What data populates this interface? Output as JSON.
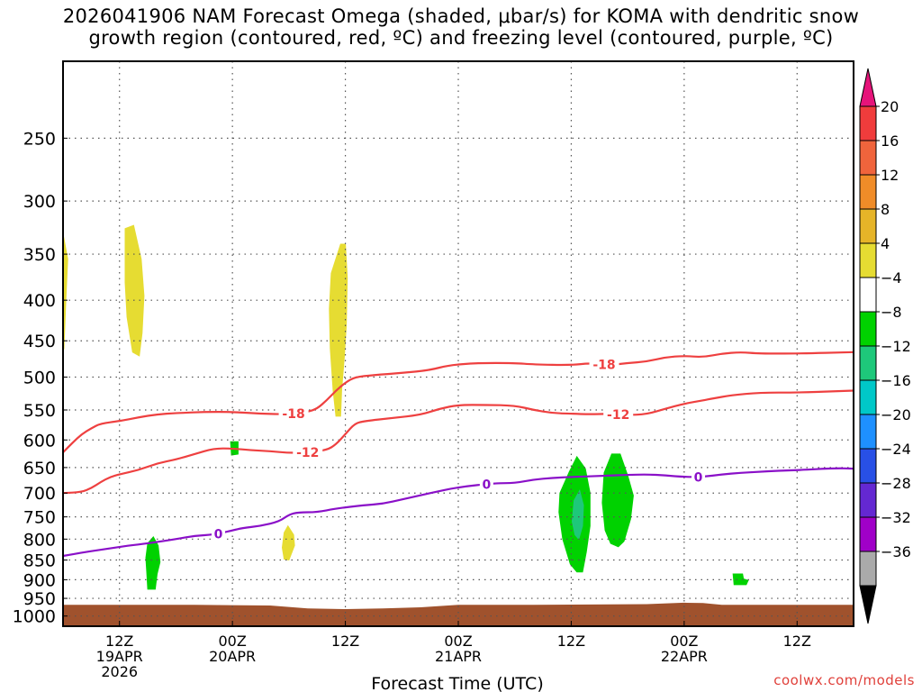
{
  "chart_data": {
    "type": "time-height-section",
    "title": "2026041906 NAM Forecast Omega (shaded, μbar/s) for KOMA with dendritic snow growth region (contoured, red, ºC) and freezing level (contoured, purple, ºC)",
    "title_line1": "2026041906 NAM Forecast Omega (shaded, μbar/s) for KOMA with dendritic snow",
    "title_line2": "growth region (contoured, red, ºC) and freezing level (contoured, purple, ºC)",
    "xlabel": "Forecast Time (UTC)",
    "ylabel": "",
    "x_range_hours": [
      6,
      90
    ],
    "y_range_hpa": [
      200,
      1030
    ],
    "y_ticks": [
      250,
      300,
      350,
      400,
      450,
      500,
      550,
      600,
      650,
      700,
      750,
      800,
      850,
      900,
      950,
      1000
    ],
    "x_ticks": [
      {
        "hour": 12,
        "line1": "12Z",
        "line2": "19APR",
        "line3": "2026"
      },
      {
        "hour": 24,
        "line1": "00Z",
        "line2": "20APR",
        "line3": ""
      },
      {
        "hour": 36,
        "line1": "12Z",
        "line2": "",
        "line3": ""
      },
      {
        "hour": 48,
        "line1": "00Z",
        "line2": "21APR",
        "line3": ""
      },
      {
        "hour": 60,
        "line1": "12Z",
        "line2": "",
        "line3": ""
      },
      {
        "hour": 72,
        "line1": "00Z",
        "line2": "22APR",
        "line3": ""
      },
      {
        "hour": 84,
        "line1": "12Z",
        "line2": "",
        "line3": ""
      }
    ],
    "colorbar": {
      "labels": [
        "20",
        "16",
        "12",
        "8",
        "4",
        "−4",
        "−8",
        "−12",
        "−16",
        "−20",
        "−24",
        "−28",
        "−32",
        "−36"
      ],
      "colors": [
        "#f03c3c",
        "#f0643c",
        "#f08c28",
        "#e6b428",
        "#e6dc32",
        "#ffffff",
        "#00d200",
        "#1ec87a",
        "#00c8c8",
        "#1e90ff",
        "#2850e6",
        "#6428d2",
        "#a000c8",
        "#aaaaaa"
      ],
      "top_arrow_color": "#e6147a",
      "bottom_arrow_color": "#000000"
    },
    "contours": [
      {
        "name": "dgz-minus18",
        "label": "-18",
        "color": "#ee4040",
        "points": [
          [
            6,
            622
          ],
          [
            7,
            605
          ],
          [
            8,
            590
          ],
          [
            9,
            580
          ],
          [
            10,
            572
          ],
          [
            12,
            568
          ],
          [
            14,
            562
          ],
          [
            16,
            557
          ],
          [
            18,
            555
          ],
          [
            21,
            553
          ],
          [
            24,
            553
          ],
          [
            27,
            556
          ],
          [
            30,
            557
          ],
          [
            32,
            553
          ],
          [
            33,
            548
          ],
          [
            34,
            535
          ],
          [
            35,
            520
          ],
          [
            36,
            508
          ],
          [
            37,
            500
          ],
          [
            39,
            497
          ],
          [
            42,
            494
          ],
          [
            45,
            490
          ],
          [
            47,
            483
          ],
          [
            50,
            480
          ],
          [
            54,
            480
          ],
          [
            56,
            482
          ],
          [
            60,
            483
          ],
          [
            62,
            480
          ],
          [
            64,
            483
          ],
          [
            66,
            480
          ],
          [
            68,
            478
          ],
          [
            70,
            472
          ],
          [
            72,
            470
          ],
          [
            74,
            472
          ],
          [
            76,
            467
          ],
          [
            78,
            465
          ],
          [
            80,
            467
          ],
          [
            84,
            467
          ],
          [
            90,
            465
          ]
        ],
        "label_hours": [
          30.5,
          63.5
        ]
      },
      {
        "name": "dgz-minus12",
        "label": "-12",
        "color": "#ee4040",
        "points": [
          [
            6,
            700
          ],
          [
            8,
            698
          ],
          [
            9,
            690
          ],
          [
            10,
            678
          ],
          [
            11,
            668
          ],
          [
            12,
            663
          ],
          [
            14,
            655
          ],
          [
            16,
            642
          ],
          [
            18,
            635
          ],
          [
            20,
            625
          ],
          [
            22,
            615
          ],
          [
            24,
            615
          ],
          [
            26,
            618
          ],
          [
            28,
            620
          ],
          [
            30,
            623
          ],
          [
            32,
            622
          ],
          [
            34,
            618
          ],
          [
            35,
            608
          ],
          [
            36,
            590
          ],
          [
            37,
            572
          ],
          [
            38,
            568
          ],
          [
            41,
            563
          ],
          [
            44,
            558
          ],
          [
            46,
            548
          ],
          [
            48,
            542
          ],
          [
            51,
            542
          ],
          [
            54,
            543
          ],
          [
            56,
            550
          ],
          [
            58,
            555
          ],
          [
            60,
            556
          ],
          [
            62,
            557
          ],
          [
            64,
            556
          ],
          [
            66,
            558
          ],
          [
            68,
            557
          ],
          [
            70,
            548
          ],
          [
            72,
            540
          ],
          [
            74,
            535
          ],
          [
            75,
            532
          ],
          [
            77,
            527
          ],
          [
            80,
            523
          ],
          [
            84,
            523
          ],
          [
            88,
            521
          ],
          [
            90,
            520
          ]
        ],
        "label_hours": [
          32,
          65
        ]
      },
      {
        "name": "freezing-level-0",
        "label": "0",
        "color": "#8a10c8",
        "points": [
          [
            6,
            840
          ],
          [
            8,
            832
          ],
          [
            10,
            825
          ],
          [
            13,
            815
          ],
          [
            15,
            810
          ],
          [
            18,
            800
          ],
          [
            20,
            792
          ],
          [
            22,
            790
          ],
          [
            24,
            780
          ],
          [
            25,
            775
          ],
          [
            27,
            770
          ],
          [
            29,
            760
          ],
          [
            30,
            745
          ],
          [
            31,
            740
          ],
          [
            33,
            740
          ],
          [
            35,
            732
          ],
          [
            38,
            725
          ],
          [
            40,
            722
          ],
          [
            42,
            713
          ],
          [
            45,
            700
          ],
          [
            48,
            688
          ],
          [
            52,
            680
          ],
          [
            54,
            680
          ],
          [
            56,
            673
          ],
          [
            58,
            670
          ],
          [
            60,
            668
          ],
          [
            63,
            666
          ],
          [
            66,
            664
          ],
          [
            68,
            663
          ],
          [
            70,
            665
          ],
          [
            72,
            668
          ],
          [
            74,
            668
          ],
          [
            76,
            663
          ],
          [
            78,
            660
          ],
          [
            80,
            658
          ],
          [
            82,
            656
          ],
          [
            84,
            655
          ],
          [
            88,
            651
          ],
          [
            90,
            652
          ]
        ],
        "label_hours": [
          22.5,
          51,
          73.5
        ]
      }
    ],
    "omega_regions": [
      {
        "name": "omega-plus4-a",
        "value": 4,
        "color": "#e6dc32",
        "points": [
          [
            6,
            330
          ],
          [
            6.5,
            355
          ],
          [
            6.3,
            400
          ],
          [
            6.1,
            460
          ],
          [
            6,
            465
          ]
        ]
      },
      {
        "name": "omega-plus4-b",
        "value": 4,
        "color": "#e6dc32",
        "points": [
          [
            12.6,
            325
          ],
          [
            13.5,
            322
          ],
          [
            14.3,
            355
          ],
          [
            14.6,
            395
          ],
          [
            14.4,
            440
          ],
          [
            14.1,
            470
          ],
          [
            13.4,
            465
          ],
          [
            12.8,
            420
          ],
          [
            12.6,
            380
          ]
        ]
      },
      {
        "name": "omega-plus4-c",
        "value": 4,
        "color": "#e6dc32",
        "points": [
          [
            34.5,
            370
          ],
          [
            35.5,
            340
          ],
          [
            36,
            340
          ],
          [
            36.2,
            375
          ],
          [
            36.1,
            430
          ],
          [
            35.9,
            470
          ],
          [
            35.6,
            520
          ],
          [
            35.5,
            560
          ],
          [
            35.0,
            560
          ],
          [
            34.7,
            520
          ],
          [
            34.4,
            460
          ],
          [
            34.3,
            410
          ]
        ]
      },
      {
        "name": "omega-plus4-d",
        "value": 4,
        "color": "#e6dc32",
        "points": [
          [
            29.5,
            785
          ],
          [
            29.9,
            770
          ],
          [
            30.5,
            790
          ],
          [
            30.6,
            815
          ],
          [
            30.0,
            850
          ],
          [
            29.5,
            848
          ],
          [
            29.3,
            820
          ]
        ]
      },
      {
        "name": "omega-minus4-a",
        "value": -4,
        "color": "#00d200",
        "points": [
          [
            15.0,
            810
          ],
          [
            15.6,
            795
          ],
          [
            16.1,
            815
          ],
          [
            16.3,
            855
          ],
          [
            16.0,
            885
          ],
          [
            15.8,
            925
          ],
          [
            15.0,
            925
          ],
          [
            14.9,
            880
          ],
          [
            14.8,
            845
          ]
        ]
      },
      {
        "name": "omega-minus4-b",
        "value": -4,
        "color": "#00d200",
        "points": [
          [
            23.8,
            603
          ],
          [
            24.6,
            603
          ],
          [
            24.6,
            625
          ],
          [
            23.9,
            627
          ]
        ]
      },
      {
        "name": "omega-minus4-c",
        "value": -4,
        "color": "#00d200",
        "points": [
          [
            58.8,
            700
          ],
          [
            59.8,
            658
          ],
          [
            60.6,
            630
          ],
          [
            61.5,
            652
          ],
          [
            62.0,
            700
          ],
          [
            62.0,
            770
          ],
          [
            61.6,
            830
          ],
          [
            61.2,
            880
          ],
          [
            60.6,
            880
          ],
          [
            59.9,
            860
          ],
          [
            59.1,
            800
          ],
          [
            58.7,
            740
          ]
        ]
      },
      {
        "name": "omega-minus8-c",
        "value": -8,
        "color": "#1ec87a",
        "points": [
          [
            60.3,
            715
          ],
          [
            60.9,
            695
          ],
          [
            61.3,
            725
          ],
          [
            61.2,
            770
          ],
          [
            60.8,
            800
          ],
          [
            60.4,
            790
          ],
          [
            60.1,
            760
          ]
        ]
      },
      {
        "name": "omega-minus4-d",
        "value": -4,
        "color": "#00d200",
        "points": [
          [
            63.5,
            660
          ],
          [
            64.3,
            625
          ],
          [
            65.2,
            625
          ],
          [
            66.0,
            665
          ],
          [
            66.6,
            705
          ],
          [
            66.3,
            755
          ],
          [
            65.6,
            805
          ],
          [
            65.0,
            818
          ],
          [
            64.2,
            810
          ],
          [
            63.6,
            780
          ],
          [
            63.3,
            720
          ]
        ]
      },
      {
        "name": "omega-minus4-e",
        "value": -4,
        "color": "#00d200",
        "points": [
          [
            77.2,
            885
          ],
          [
            78.2,
            885
          ],
          [
            78.3,
            898
          ],
          [
            78.8,
            902
          ],
          [
            78.6,
            913
          ],
          [
            77.3,
            913
          ]
        ]
      }
    ],
    "terrain": {
      "color": "#a0522d",
      "points": [
        [
          6,
          968
        ],
        [
          20,
          968
        ],
        [
          28,
          970
        ],
        [
          32,
          978
        ],
        [
          36,
          980
        ],
        [
          40,
          978
        ],
        [
          44,
          975
        ],
        [
          48,
          968
        ],
        [
          56,
          968
        ],
        [
          68,
          966
        ],
        [
          72,
          962
        ],
        [
          74,
          963
        ],
        [
          76,
          968
        ],
        [
          90,
          968
        ]
      ]
    },
    "watermark": "coolwx.com/models"
  }
}
